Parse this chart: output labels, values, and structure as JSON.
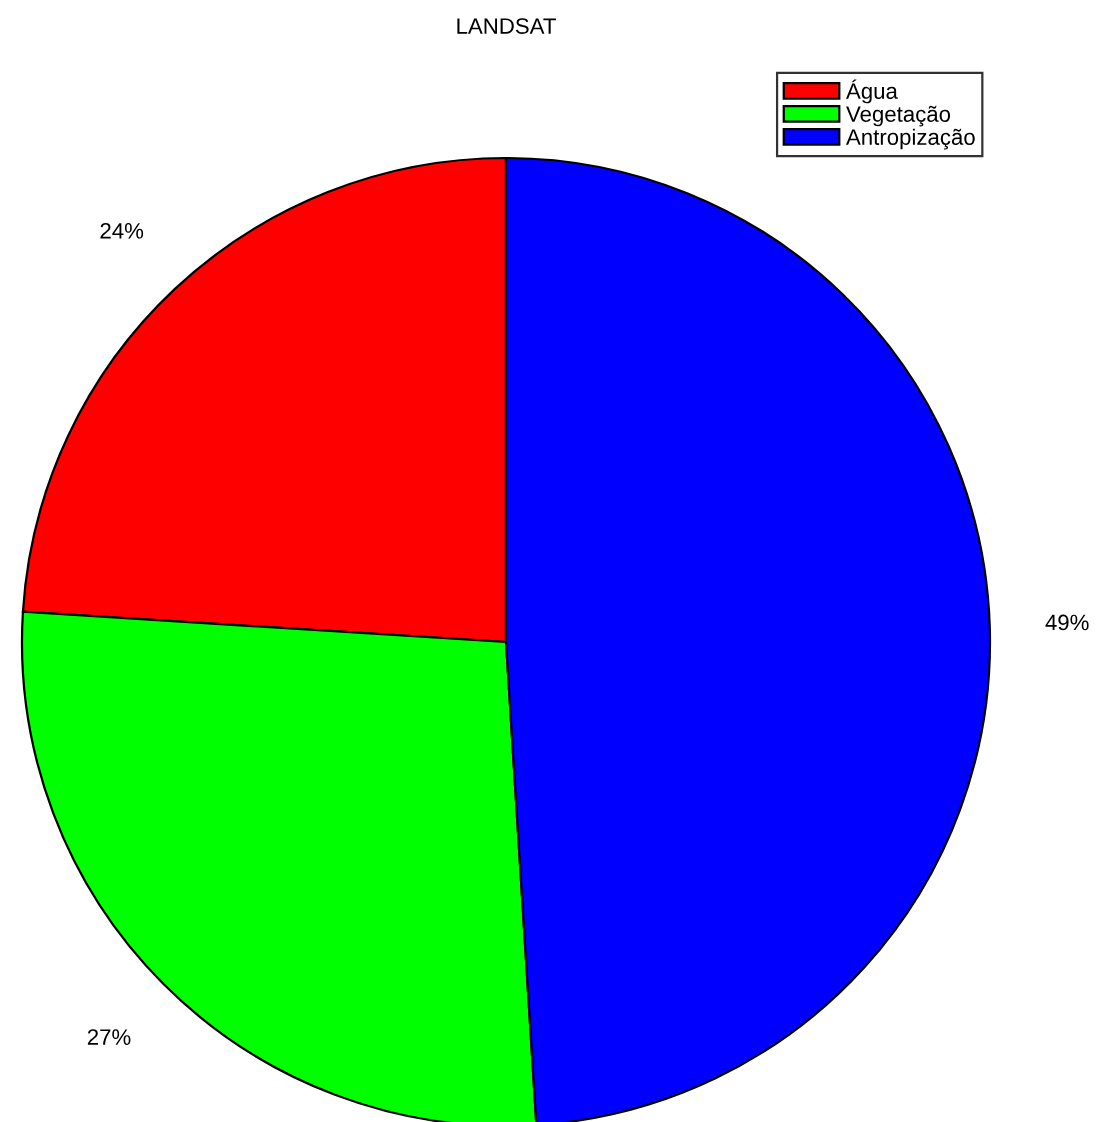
{
  "chart_data": {
    "type": "pie",
    "title": "LANDSAT",
    "categories": [
      "Água",
      "Vegetação",
      "Antropização"
    ],
    "values": [
      24,
      27,
      49
    ],
    "colors": [
      "#ff0000",
      "#00ff00",
      "#0000ff"
    ],
    "value_labels": [
      "24%",
      "27%",
      "49%"
    ],
    "legend": "top right"
  }
}
